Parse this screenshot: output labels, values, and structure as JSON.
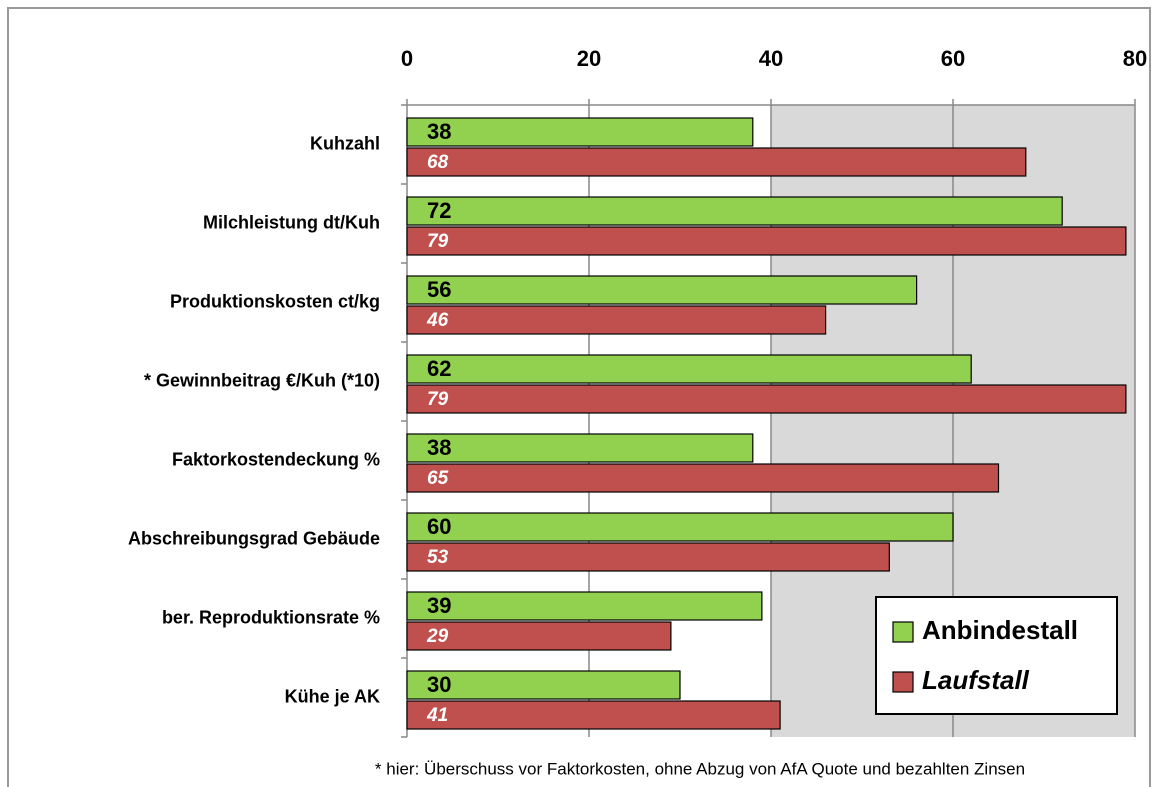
{
  "chart_data": {
    "type": "bar",
    "orientation": "horizontal",
    "categories": [
      "Kuhzahl",
      "Milchleistung dt/Kuh",
      "Produktionskosten ct/kg",
      "* Gewinnbeitrag €/Kuh (*10)",
      "Faktorkostendeckung %",
      "Abschreibungsgrad  Gebäude",
      "ber. Reproduktionsrate %",
      "Kühe je AK"
    ],
    "series": [
      {
        "name": "Anbindestall",
        "color": "#92d050",
        "values": [
          38,
          72,
          56,
          62,
          38,
          60,
          39,
          30
        ]
      },
      {
        "name": "Laufstall",
        "color": "#c0504d",
        "values": [
          68,
          79,
          46,
          79,
          65,
          53,
          29,
          41
        ]
      }
    ],
    "xlim": [
      0,
      80
    ],
    "xticks": [
      0,
      20,
      40,
      60,
      80
    ],
    "grid": true,
    "legend": "bottom-right",
    "annotation": "* hier: Überschuss vor Faktorkosten, ohne Abzug von AfA Quote und bezahlten Zinsen"
  }
}
